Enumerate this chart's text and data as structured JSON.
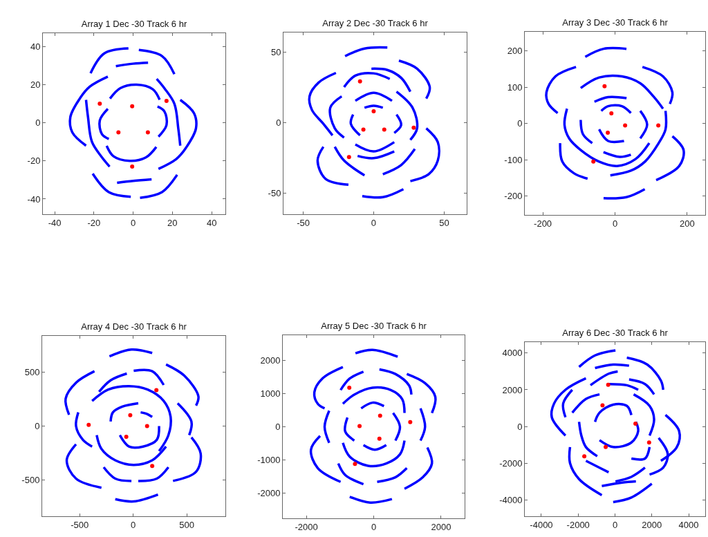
{
  "chart_data": [
    {
      "type": "line",
      "title": "Array 1 Dec -30 Track 6 hr",
      "xlim": [
        -46,
        47
      ],
      "ylim": [
        -48,
        47
      ],
      "xticks": [
        -40,
        -20,
        0,
        20,
        40
      ],
      "yticks": [
        -40,
        -20,
        0,
        20,
        40
      ],
      "series": [
        {
          "color": "#0000ff",
          "x": [
            -21.7,
            -14.7,
            -2.4
          ],
          "values": [
            26,
            36.4,
            39
          ]
        },
        {
          "color": "#0000ff",
          "x": [
            2.9,
            14.7,
            21
          ],
          "values": [
            38.2,
            35,
            25.5
          ]
        },
        {
          "color": "#0000ff",
          "x": [
            -8.8,
            0,
            7.6
          ],
          "values": [
            29.7,
            31,
            31.5
          ]
        },
        {
          "color": "#0000ff",
          "x": [
            -20.6,
            -12.4,
            -1.2
          ],
          "values": [
            -26.7,
            -36.4,
            -38.8
          ]
        },
        {
          "color": "#0000ff",
          "x": [
            3.5,
            14.7,
            22.4
          ],
          "values": [
            -39.4,
            -36.4,
            -27.3
          ]
        },
        {
          "color": "#0000ff",
          "x": [
            -8.2,
            0,
            9.4
          ],
          "values": [
            -31.5,
            -30.5,
            -29.7
          ]
        },
        {
          "color": "#0000ff",
          "x": [
            -12.9,
            -22,
            -27,
            -32,
            -31,
            -24
          ],
          "values": [
            24.2,
            19,
            13,
            3,
            -5,
            -12
          ]
        },
        {
          "color": "#0000ff",
          "x": [
            -24,
            -23,
            -21,
            -16,
            -12
          ],
          "values": [
            12,
            3,
            -10,
            -18,
            -23
          ]
        },
        {
          "color": "#0000ff",
          "x": [
            12.9,
            22,
            27,
            32,
            31,
            24
          ],
          "values": [
            -24.2,
            -19,
            -13,
            -3,
            5,
            12
          ]
        },
        {
          "color": "#0000ff",
          "x": [
            24,
            23,
            21,
            16,
            12
          ],
          "values": [
            -12,
            -3,
            10,
            18,
            23
          ]
        },
        {
          "color": "#0000ff",
          "x": [
            -11.8,
            -6.5,
            1.8,
            10,
            13.5
          ],
          "values": [
            12.7,
            18.2,
            20,
            17.6,
            12.1
          ]
        },
        {
          "color": "#0000ff",
          "x": [
            -13.5,
            -10,
            -1.8,
            6.5,
            11.8
          ],
          "values": [
            -12.1,
            -17.6,
            -20,
            -18.2,
            -12.7
          ]
        },
        {
          "color": "#0000ff",
          "x": [
            -12.9,
            -17,
            -15.9,
            -12.4
          ],
          "values": [
            7.3,
            1.2,
            -6,
            -8.5
          ]
        },
        {
          "color": "#0000ff",
          "x": [
            12.9,
            17,
            15.9,
            12.4
          ],
          "values": [
            -7.3,
            -1.2,
            6,
            8.5
          ]
        },
        {
          "type": "scatter",
          "marker": "circle",
          "color": "#ff0000",
          "x": [
            -17,
            -0.5,
            17,
            -7.5,
            7.5,
            -0.5
          ],
          "values": [
            10,
            8.7,
            11.5,
            -5,
            -5,
            -23
          ]
        }
      ]
    },
    {
      "type": "line",
      "title": "Array 2 Dec -30 Track 6 hr",
      "xlim": [
        -64,
        66
      ],
      "ylim": [
        -65,
        64
      ],
      "xticks": [
        -50,
        0,
        50
      ],
      "yticks": [
        -50,
        0,
        50
      ],
      "series": [
        {
          "color": "#0000ff",
          "x": [
            -20.3,
            -6.5,
            9.7
          ],
          "values": [
            47.2,
            52.6,
            53.3
          ]
        },
        {
          "color": "#0000ff",
          "x": [
            17.9,
            30.8,
            39.8,
            37.3
          ],
          "values": [
            44,
            38.3,
            25.2,
            17.1
          ]
        },
        {
          "color": "#0000ff",
          "x": [
            -26.8,
            -39,
            -45.5,
            -43.8,
            -35.7,
            -29.2
          ],
          "values": [
            35.3,
            28.5,
            18.7,
            9,
            -0.8,
            -9
          ]
        },
        {
          "color": "#0000ff",
          "x": [
            -21,
            -13,
            0,
            11.4
          ],
          "values": [
            25.2,
            33.4,
            35,
            31
          ]
        },
        {
          "color": "#0000ff",
          "x": [
            -1.6,
            9.7,
            19.5,
            26
          ],
          "values": [
            38.3,
            37.4,
            31.8,
            22
          ]
        },
        {
          "color": "#0000ff",
          "x": [
            -22.7,
            -30.8,
            -27.6,
            -21
          ],
          "values": [
            18.7,
            10.6,
            -4,
            -10.6
          ]
        },
        {
          "color": "#0000ff",
          "x": [
            -13,
            0,
            13
          ],
          "values": [
            15.5,
            21.2,
            15.5
          ]
        },
        {
          "color": "#0000ff",
          "x": [
            -13,
            0,
            14.6
          ],
          "values": [
            -15.5,
            -20.4,
            -13.8
          ]
        },
        {
          "color": "#0000ff",
          "x": [
            -14.6,
            -16.2,
            -9.7
          ],
          "values": [
            5.7,
            -0.8,
            -9
          ]
        },
        {
          "color": "#0000ff",
          "x": [
            16.2,
            19.5,
            14.6
          ],
          "values": [
            5.7,
            -1.6,
            -7.3
          ]
        },
        {
          "color": "#0000ff",
          "x": [
            -6.5,
            0,
            6.5
          ],
          "values": [
            10.6,
            12,
            10.6
          ]
        },
        {
          "color": "#0000ff",
          "x": [
            16.2,
            27.6,
            30.8,
            26
          ],
          "values": [
            22,
            10.6,
            -4,
            -12.2
          ]
        },
        {
          "color": "#0000ff",
          "x": [
            37.3,
            45.5,
            45.5,
            39,
            26
          ],
          "values": [
            -4,
            -13.8,
            -26.9,
            -36.6,
            -41.5
          ]
        },
        {
          "color": "#0000ff",
          "x": [
            -35.7,
            -39.8,
            -34.1,
            -17.9
          ],
          "values": [
            -17.1,
            -26.9,
            -39.9,
            -44
          ]
        },
        {
          "color": "#0000ff",
          "x": [
            -27.6,
            -21,
            -6.5
          ],
          "values": [
            -17.1,
            -26.9,
            -37.4
          ]
        },
        {
          "color": "#0000ff",
          "x": [
            6.5,
            19.5,
            29.2
          ],
          "values": [
            -36.6,
            -30.1,
            -18.7
          ]
        },
        {
          "color": "#0000ff",
          "x": [
            -8.1,
            6.5,
            21.1
          ],
          "values": [
            -52.1,
            -52.9,
            -47.2
          ]
        },
        {
          "color": "#0000ff",
          "x": [
            -11.4,
            0,
            14.6
          ],
          "values": [
            -23.6,
            -25.2,
            -20.4
          ]
        },
        {
          "type": "scatter",
          "marker": "circle",
          "color": "#ff0000",
          "x": [
            -9.7,
            0,
            -7.3,
            7.5,
            28.4,
            -17.5
          ],
          "values": [
            29.3,
            8.1,
            -4.9,
            -4.9,
            -3.6,
            -24.4
          ]
        }
      ]
    },
    {
      "type": "line",
      "title": "Array 3 Dec -30 Track 6 hr",
      "xlim": [
        -250,
        250
      ],
      "ylim": [
        -252,
        253
      ],
      "xticks": [
        -200,
        0,
        200
      ],
      "yticks": [
        -200,
        -100,
        0,
        100,
        200
      ],
      "series": [
        {
          "color": "#0000ff",
          "x": [
            -82.5,
            -31.7,
            31.7
          ],
          "values": [
            184,
            206,
            206
          ]
        },
        {
          "color": "#0000ff",
          "x": [
            -31.7,
            31.7,
            82.5
          ],
          "values": [
            -206,
            -203,
            -181
          ]
        },
        {
          "color": "#0000ff",
          "x": [
            -108,
            -165,
            -190,
            -184,
            -159
          ],
          "values": [
            156,
            130,
            86,
            54,
            29
          ]
        },
        {
          "color": "#0000ff",
          "x": [
            159,
            190,
            178,
            114
          ],
          "values": [
            -35,
            -73,
            -117,
            -156
          ]
        },
        {
          "color": "#0000ff",
          "x": [
            76,
            133,
            159,
            152
          ],
          "values": [
            156,
            130,
            86,
            54
          ]
        },
        {
          "color": "#0000ff",
          "x": [
            -152,
            -146,
            -114,
            -76
          ],
          "values": [
            -54,
            -105,
            -137,
            -152
          ]
        },
        {
          "color": "#0000ff",
          "x": [
            -95,
            -44,
            19,
            70,
            108,
            133
          ],
          "values": [
            98,
            127,
            130,
            111,
            73,
            41
          ]
        },
        {
          "color": "#0000ff",
          "x": [
            -133,
            -140,
            -127,
            -95,
            -44,
            6,
            57,
            95
          ],
          "values": [
            41,
            -3,
            -41,
            -73,
            -105,
            -117,
            -98,
            -54
          ]
        },
        {
          "color": "#0000ff",
          "x": [
            140,
            140,
            121,
            83,
            44,
            -13
          ],
          "values": [
            35,
            -16,
            -54,
            -105,
            -130,
            -143
          ]
        },
        {
          "color": "#0000ff",
          "x": [
            -57,
            -19,
            32
          ],
          "values": [
            60,
            73,
            70
          ]
        },
        {
          "color": "#0000ff",
          "x": [
            -32,
            13,
            44
          ],
          "values": [
            -79,
            -92,
            -86
          ]
        },
        {
          "color": "#0000ff",
          "x": [
            -95,
            -89,
            -63
          ],
          "values": [
            10,
            -29,
            -54
          ]
        },
        {
          "color": "#0000ff",
          "x": [
            70,
            89,
            70
          ],
          "values": [
            35,
            -3,
            -41
          ]
        },
        {
          "color": "#0000ff",
          "x": [
            -38,
            -19,
            19,
            44
          ],
          "values": [
            35,
            48,
            48,
            29
          ]
        },
        {
          "color": "#0000ff",
          "x": [
            -44,
            -19,
            25
          ],
          "values": [
            -16,
            -48,
            -48
          ]
        },
        {
          "type": "scatter",
          "marker": "circle",
          "color": "#ff0000",
          "x": [
            -29,
            -10,
            28,
            120,
            -20,
            -60
          ],
          "values": [
            103,
            28,
            -5,
            -5,
            -25,
            -105
          ]
        }
      ]
    },
    {
      "type": "line",
      "title": "Array 4 Dec -30 Track 6 hr",
      "xlim": [
        -850,
        860
      ],
      "ylim": [
        -840,
        840
      ],
      "xticks": [
        -500,
        0,
        500
      ],
      "yticks": [
        -500,
        0,
        500
      ],
      "series": [
        {
          "color": "#0000ff",
          "x": [
            -222,
            -17,
            177
          ],
          "values": [
            649,
            713,
            681
          ]
        },
        {
          "color": "#0000ff",
          "x": [
            -168,
            4,
            231
          ],
          "values": [
            -681,
            -702,
            -638
          ]
        },
        {
          "color": "#0000ff",
          "x": [
            -362,
            -534,
            -631,
            -599
          ],
          "values": [
            511,
            404,
            255,
            106
          ]
        },
        {
          "color": "#0000ff",
          "x": [
            306,
            478,
            608,
            586
          ],
          "values": [
            574,
            468,
            277,
            191
          ]
        },
        {
          "color": "#0000ff",
          "x": [
            -534,
            -621,
            -534,
            -297
          ],
          "values": [
            -170,
            -319,
            -489,
            -574
          ]
        },
        {
          "color": "#0000ff",
          "x": [
            543,
            629,
            586,
            371
          ],
          "values": [
            -106,
            -255,
            -426,
            -511
          ]
        },
        {
          "color": "#0000ff",
          "x": [
            -319,
            -211,
            -60
          ],
          "values": [
            319,
            426,
            489
          ]
        },
        {
          "color": "#0000ff",
          "x": [
            4,
            177,
            284
          ],
          "values": [
            515,
            511,
            383
          ]
        },
        {
          "color": "#0000ff",
          "x": [
            -276,
            -168,
            -17
          ],
          "values": [
            -383,
            -489,
            -511
          ]
        },
        {
          "color": "#0000ff",
          "x": [
            47,
            220,
            328
          ],
          "values": [
            -511,
            -489,
            -383
          ]
        },
        {
          "color": "#0000ff",
          "x": [
            -384,
            -233,
            -39,
            134,
            284,
            349,
            328,
            241
          ],
          "values": [
            234,
            340,
            372,
            340,
            234,
            85,
            -85,
            -234
          ]
        },
        {
          "color": "#0000ff",
          "x": [
            -341,
            -297,
            -168,
            4,
            177,
            306
          ],
          "values": [
            -85,
            -213,
            -319,
            -362,
            -319,
            -191
          ]
        },
        {
          "color": "#0000ff",
          "x": [
            -513,
            -534,
            -470,
            -384
          ],
          "values": [
            128,
            0,
            -128,
            -191
          ]
        },
        {
          "color": "#0000ff",
          "x": [
            414,
            543,
            522
          ],
          "values": [
            213,
            43,
            -85
          ]
        },
        {
          "color": "#0000ff",
          "x": [
            -211,
            -190,
            -103,
            47
          ],
          "values": [
            43,
            128,
            181,
            213
          ]
        },
        {
          "color": "#0000ff",
          "x": [
            -125,
            -39,
            90,
            220,
            241
          ],
          "values": [
            -85,
            -191,
            -191,
            -128,
            0
          ]
        },
        {
          "color": "#0000ff",
          "x": [
            69,
            123,
            177
          ],
          "values": [
            128,
            115,
            85
          ]
        },
        {
          "type": "scatter",
          "marker": "circle",
          "color": "#ff0000",
          "x": [
            -416,
            216,
            -28,
            129,
            -65,
            177
          ],
          "values": [
            11,
            334,
            102,
            0,
            -100,
            -372
          ]
        }
      ]
    },
    {
      "type": "line",
      "title": "Array 5 Dec -30 Track 6 hr",
      "xlim": [
        -2700,
        2700
      ],
      "ylim": [
        -2750,
        2750
      ],
      "xticks": [
        -2000,
        0,
        2000
      ],
      "yticks": [
        -2000,
        -1000,
        0,
        1000,
        2000
      ],
      "series": [
        {
          "color": "#0000ff",
          "x": [
            -542,
            -34,
            712
          ],
          "values": [
            2207,
            2310,
            2103
          ]
        },
        {
          "color": "#0000ff",
          "x": [
            -712,
            -102,
            542
          ],
          "values": [
            -2103,
            -2276,
            -2172
          ]
        },
        {
          "color": "#0000ff",
          "x": [
            -915,
            -1525,
            -1763,
            -1661,
            -1458
          ],
          "values": [
            1793,
            1448,
            1034,
            690,
            552
          ]
        },
        {
          "color": "#0000ff",
          "x": [
            -983,
            -712,
            -305
          ],
          "values": [
            1103,
            1448,
            1655
          ]
        },
        {
          "color": "#0000ff",
          "x": [
            169,
            644,
            1051,
            1119
          ],
          "values": [
            1724,
            1586,
            1241,
            966
          ]
        },
        {
          "color": "#0000ff",
          "x": [
            983,
            1525,
            1831,
            1729
          ],
          "values": [
            1586,
            1310,
            897,
            414
          ]
        },
        {
          "color": "#0000ff",
          "x": [
            1593,
            1729,
            1458,
            915
          ],
          "values": [
            -621,
            -1103,
            -1517,
            -1862
          ]
        },
        {
          "color": "#0000ff",
          "x": [
            -1593,
            -1864,
            -1661,
            -983
          ],
          "values": [
            -276,
            -690,
            -1241,
            -1655
          ]
        },
        {
          "color": "#0000ff",
          "x": [
            -1051,
            -847,
            -305
          ],
          "values": [
            -1103,
            -1448,
            -1724
          ]
        },
        {
          "color": "#0000ff",
          "x": [
            102,
            644,
            983
          ],
          "values": [
            -1655,
            -1517,
            -1241
          ]
        },
        {
          "color": "#0000ff",
          "x": [
            -915,
            -576,
            -34,
            508,
            847,
            915
          ],
          "values": [
            690,
            966,
            1172,
            1103,
            828,
            414
          ]
        },
        {
          "color": "#0000ff",
          "x": [
            -915,
            -712,
            -169,
            373,
            780,
            915
          ],
          "values": [
            -483,
            -897,
            -1172,
            -1103,
            -828,
            -414
          ]
        },
        {
          "color": "#0000ff",
          "x": [
            -1322,
            -1458,
            -1322
          ],
          "values": [
            483,
            0,
            -483
          ]
        },
        {
          "color": "#0000ff",
          "x": [
            1390,
            1525,
            1390
          ],
          "values": [
            552,
            0,
            -414
          ]
        },
        {
          "color": "#0000ff",
          "x": [
            -373,
            -34,
            305
          ],
          "values": [
            552,
            724,
            621
          ]
        },
        {
          "color": "#0000ff",
          "x": [
            -305,
            34,
            373
          ],
          "values": [
            -552,
            -690,
            -552
          ]
        },
        {
          "color": "#0000ff",
          "x": [
            -780,
            -847,
            -576
          ],
          "values": [
            276,
            -138,
            -414
          ]
        },
        {
          "color": "#0000ff",
          "x": [
            576,
            780,
            644
          ],
          "values": [
            414,
            0,
            -414
          ]
        },
        {
          "type": "scatter",
          "marker": "circle",
          "color": "#ff0000",
          "x": [
            -725,
            190,
            1085,
            -420,
            169,
            -556
          ],
          "values": [
            1172,
            331,
            138,
            21,
            -359,
            -1117
          ]
        }
      ]
    },
    {
      "type": "line",
      "title": "Array 6 Dec -30 Track 6 hr",
      "xlim": [
        -4900,
        4900
      ],
      "ylim": [
        -4900,
        4600
      ],
      "xticks": [
        -4000,
        -2000,
        0,
        2000,
        4000
      ],
      "yticks": [
        -4000,
        -2000,
        0,
        2000,
        4000
      ],
      "series": [
        {
          "color": "#0000ff",
          "x": [
            -1951,
            -1086,
            25
          ],
          "values": [
            3250,
            3875,
            4150
          ]
        },
        {
          "color": "#0000ff",
          "x": [
            -1086,
            -99,
            765
          ],
          "values": [
            3188,
            3375,
            3313
          ]
        },
        {
          "color": "#0000ff",
          "x": [
            642,
            1753,
            2494,
            2617
          ],
          "values": [
            3750,
            3375,
            2500,
            2000
          ]
        },
        {
          "color": "#0000ff",
          "x": [
            765,
            1630,
            2123
          ],
          "values": [
            2563,
            2313,
            1750
          ]
        },
        {
          "color": "#0000ff",
          "x": [
            -1580,
            -2691,
            -3309,
            -3432,
            -2691
          ],
          "values": [
            2625,
            2000,
            1250,
            500,
            -500
          ]
        },
        {
          "color": "#0000ff",
          "x": [
            -2321,
            -2815,
            -2691
          ],
          "values": [
            2000,
            1250,
            500
          ]
        },
        {
          "color": "#0000ff",
          "x": [
            -1333,
            -346,
            148
          ],
          "values": [
            2250,
            2875,
            3000
          ]
        },
        {
          "color": "#0000ff",
          "x": [
            -346,
            642,
            1259
          ],
          "values": [
            2313,
            2250,
            2000
          ]
        },
        {
          "color": "#0000ff",
          "x": [
            -2321,
            -1580,
            -840
          ],
          "values": [
            750,
            1500,
            1750
          ]
        },
        {
          "color": "#0000ff",
          "x": [
            1012,
            1877,
            2123,
            1877
          ],
          "values": [
            1750,
            1125,
            375,
            -500
          ]
        },
        {
          "color": "#0000ff",
          "x": [
            -1086,
            -840,
            -99,
            642,
            889
          ],
          "values": [
            250,
            750,
            1188,
            1125,
            625
          ]
        },
        {
          "color": "#0000ff",
          "x": [
            -840,
            -99,
            889,
            1259,
            1136
          ],
          "values": [
            -750,
            -1125,
            -875,
            -250,
            250
          ]
        },
        {
          "color": "#0000ff",
          "x": [
            -1951,
            -1827,
            -1580,
            -963
          ],
          "values": [
            250,
            -500,
            -1125,
            -1625
          ]
        },
        {
          "color": "#0000ff",
          "x": [
            2741,
            3481,
            3358,
            2494
          ],
          "values": [
            625,
            -250,
            -1125,
            -1875
          ]
        },
        {
          "color": "#0000ff",
          "x": [
            2370,
            2864,
            2617,
            1877
          ],
          "values": [
            -625,
            -1500,
            -2250,
            -2625
          ]
        },
        {
          "color": "#0000ff",
          "x": [
            1877,
            1630,
            889
          ],
          "values": [
            -1125,
            -1750,
            -1750
          ]
        },
        {
          "color": "#0000ff",
          "x": [
            -2444,
            -2444,
            -1951,
            -716
          ],
          "values": [
            -1125,
            -2000,
            -2875,
            -3750
          ]
        },
        {
          "color": "#0000ff",
          "x": [
            -1580,
            -840,
            -346
          ],
          "values": [
            -1875,
            -2250,
            -2500
          ]
        },
        {
          "color": "#0000ff",
          "x": [
            25,
            889,
            1630
          ],
          "values": [
            -3000,
            -2750,
            -2250
          ]
        },
        {
          "color": "#0000ff",
          "x": [
            -716,
            395,
            1136
          ],
          "values": [
            -3250,
            -3063,
            -3000
          ]
        },
        {
          "color": "#0000ff",
          "x": [
            -99,
            889,
            2000
          ],
          "values": [
            -4125,
            -3875,
            -3125
          ]
        },
        {
          "type": "scatter",
          "marker": "circle",
          "color": "#ff0000",
          "x": [
            -370,
            -679,
            1111,
            1852,
            -506,
            -1667
          ],
          "values": [
            2275,
            1150,
            150,
            -875,
            -1125,
            -1625
          ]
        }
      ]
    }
  ]
}
